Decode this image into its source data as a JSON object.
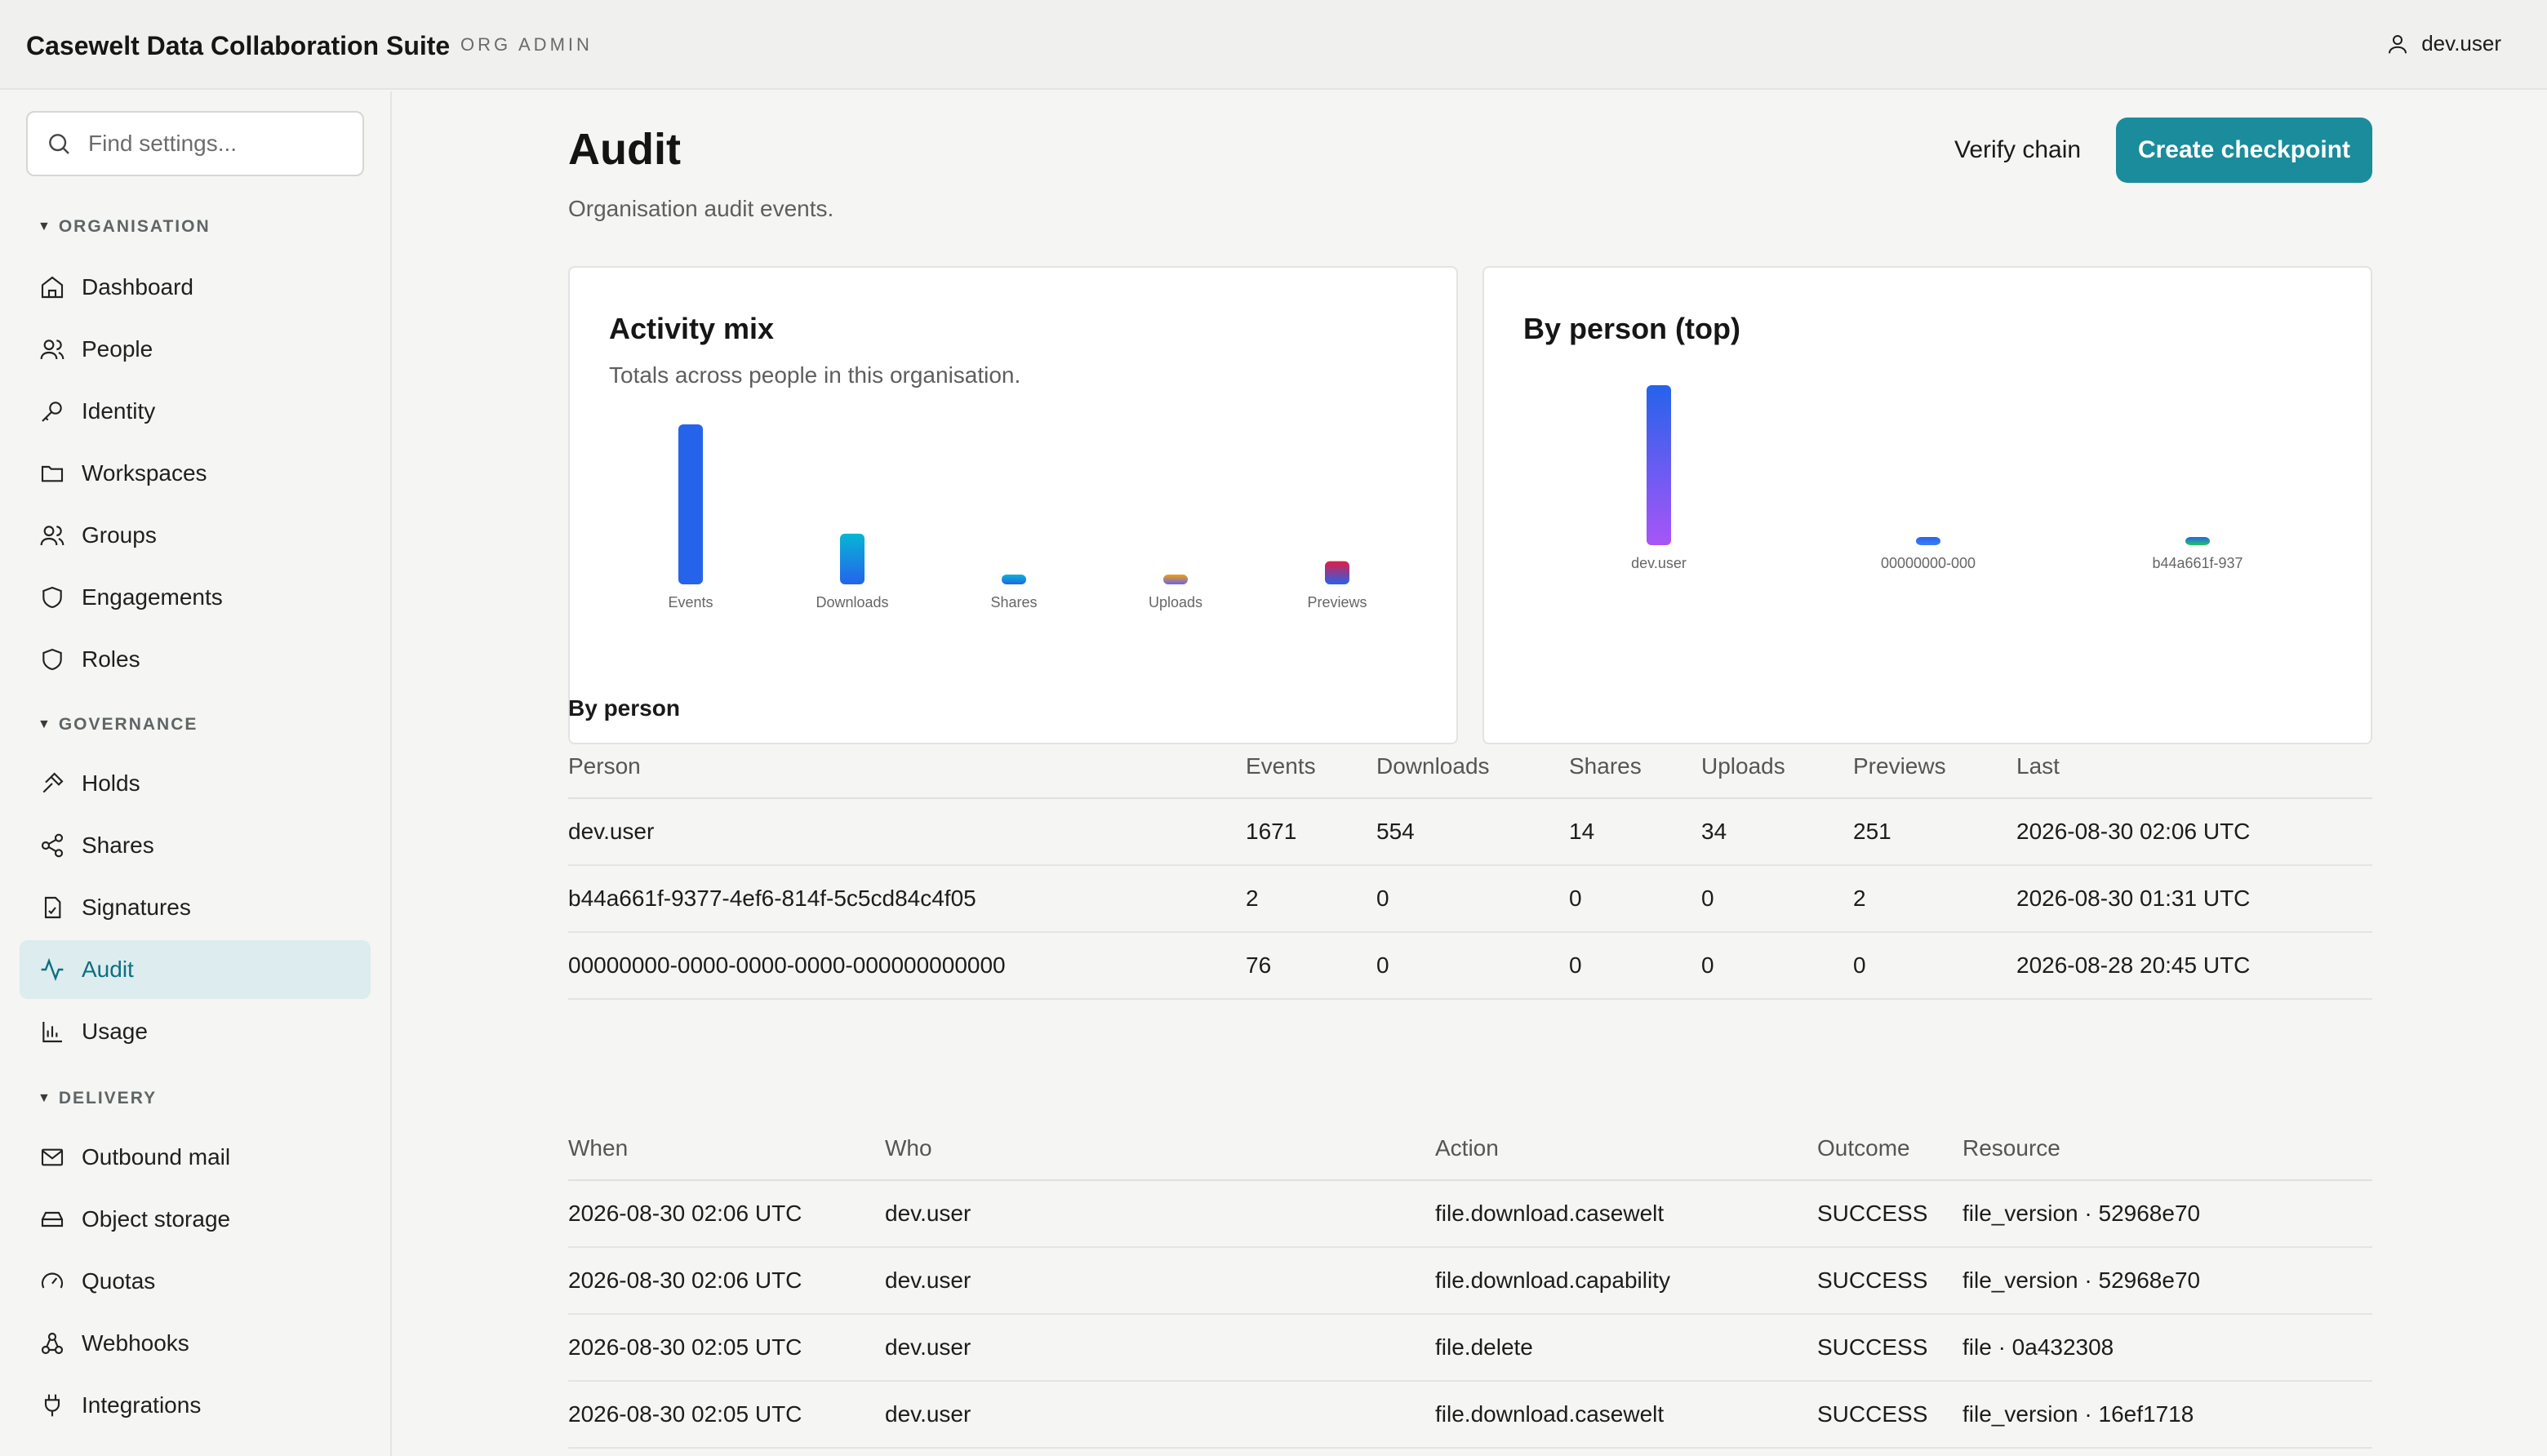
{
  "header": {
    "app_title": "Casewelt Data Collaboration Suite",
    "role_badge": "ORG ADMIN",
    "user_name": "dev.user"
  },
  "sidebar": {
    "search_placeholder": "Find settings...",
    "sections": [
      {
        "title": "ORGANISATION",
        "items": [
          {
            "label": "Dashboard",
            "icon": "home-icon"
          },
          {
            "label": "People",
            "icon": "people-icon"
          },
          {
            "label": "Identity",
            "icon": "key-icon"
          },
          {
            "label": "Workspaces",
            "icon": "folder-icon"
          },
          {
            "label": "Groups",
            "icon": "groups-icon"
          },
          {
            "label": "Engagements",
            "icon": "shield-icon"
          },
          {
            "label": "Roles",
            "icon": "shield-icon"
          }
        ]
      },
      {
        "title": "GOVERNANCE",
        "items": [
          {
            "label": "Holds",
            "icon": "gavel-icon"
          },
          {
            "label": "Shares",
            "icon": "share-icon"
          },
          {
            "label": "Signatures",
            "icon": "signature-icon"
          },
          {
            "label": "Audit",
            "icon": "activity-icon",
            "active": true
          },
          {
            "label": "Usage",
            "icon": "bar-chart-icon"
          }
        ]
      },
      {
        "title": "DELIVERY",
        "items": [
          {
            "label": "Outbound mail",
            "icon": "mail-icon"
          },
          {
            "label": "Object storage",
            "icon": "storage-icon"
          },
          {
            "label": "Quotas",
            "icon": "gauge-icon"
          },
          {
            "label": "Webhooks",
            "icon": "webhook-icon"
          },
          {
            "label": "Integrations",
            "icon": "plug-icon"
          }
        ]
      }
    ]
  },
  "main": {
    "title": "Audit",
    "subtitle": "Organisation audit events.",
    "verify_label": "Verify chain",
    "create_label": "Create checkpoint",
    "by_person_heading": "By person"
  },
  "accent_color": "#1a8c9c",
  "chart_data": [
    {
      "type": "bar",
      "title": "Activity mix",
      "subtitle": "Totals across people in this organisation.",
      "categories": [
        "Events",
        "Downloads",
        "Shares",
        "Uploads",
        "Previews"
      ],
      "values": [
        1749,
        554,
        14,
        34,
        253
      ],
      "colors": [
        [
          "#2563eb",
          "#2563eb"
        ],
        [
          "#06b6d4",
          "#2563eb"
        ],
        [
          "#06b6d4",
          "#2563eb"
        ],
        [
          "#f59e0b",
          "#6366f1"
        ],
        [
          "#e11d48",
          "#2563eb"
        ]
      ]
    },
    {
      "type": "bar",
      "title": "By person (top)",
      "categories": [
        "dev.user",
        "00000000-000",
        "b44a661f-937"
      ],
      "values": [
        1671,
        76,
        2
      ],
      "colors": [
        [
          "#2563eb",
          "#a855f7"
        ],
        [
          "#2563eb",
          "#3b82f6"
        ],
        [
          "#2563eb",
          "#22c55e"
        ]
      ]
    }
  ],
  "person_table": {
    "columns": [
      "Person",
      "Events",
      "Downloads",
      "Shares",
      "Uploads",
      "Previews",
      "Last"
    ],
    "rows": [
      [
        "dev.user",
        "1671",
        "554",
        "14",
        "34",
        "251",
        "2026-08-30 02:06 UTC"
      ],
      [
        "b44a661f-9377-4ef6-814f-5c5cd84c4f05",
        "2",
        "0",
        "0",
        "0",
        "2",
        "2026-08-30 01:31 UTC"
      ],
      [
        "00000000-0000-0000-0000-000000000000",
        "76",
        "0",
        "0",
        "0",
        "0",
        "2026-08-28 20:45 UTC"
      ]
    ]
  },
  "events_table": {
    "columns": [
      "When",
      "Who",
      "Action",
      "Outcome",
      "Resource"
    ],
    "rows": [
      [
        "2026-08-30 02:06 UTC",
        "dev.user",
        "file.download.casewelt",
        "SUCCESS",
        "file_version · 52968e70"
      ],
      [
        "2026-08-30 02:06 UTC",
        "dev.user",
        "file.download.capability",
        "SUCCESS",
        "file_version · 52968e70"
      ],
      [
        "2026-08-30 02:05 UTC",
        "dev.user",
        "file.delete",
        "SUCCESS",
        "file · 0a432308"
      ],
      [
        "2026-08-30 02:05 UTC",
        "dev.user",
        "file.download.casewelt",
        "SUCCESS",
        "file_version · 16ef1718"
      ],
      [
        "2026-08-30 02:05 UTC",
        "dev.user",
        "file.download.capability",
        "SUCCESS",
        "file_version · 16ef1718"
      ]
    ]
  }
}
